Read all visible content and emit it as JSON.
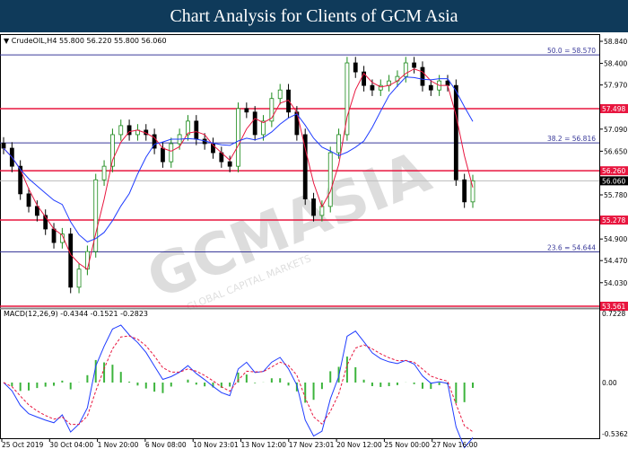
{
  "title": "Chart Analysis for Clients of GCM Asia",
  "chart_data": {
    "type": "candlestick",
    "symbol_label": "CrudeOIL,H4",
    "ohlc_label": "55.800 56.220 55.800 56.060",
    "price_ticks": [
      "58.840",
      "58.400",
      "57.970",
      "57.090",
      "56.650",
      "55.780",
      "54.900",
      "54.470",
      "54.030"
    ],
    "price_range": [
      53.561,
      58.84
    ],
    "closes": [
      56.71,
      56.35,
      55.8,
      55.55,
      55.37,
      55.1,
      54.83,
      55.0,
      53.94,
      54.3,
      54.65,
      56.08,
      56.35,
      56.98,
      57.16,
      56.98,
      57.07,
      56.98,
      56.71,
      56.44,
      56.8,
      56.98,
      57.25,
      56.89,
      56.8,
      56.62,
      56.44,
      56.35,
      57.5,
      57.43,
      56.98,
      57.25,
      57.7,
      57.87,
      57.43,
      56.98,
      55.7,
      55.37,
      55.55,
      56.62,
      56.98,
      58.41,
      58.23,
      57.96,
      57.87,
      57.96,
      58.05,
      58.14,
      58.41,
      58.32,
      57.96,
      57.87,
      58.05,
      57.96,
      56.08,
      55.64,
      56.06
    ],
    "horizontal_levels": [
      {
        "value": 58.57,
        "label": "50.0 = 58.570",
        "color": "#3a3a9a",
        "kind": "fibo"
      },
      {
        "value": 56.816,
        "label": "38.2 = 56.816",
        "color": "#3a3a9a",
        "kind": "fibo"
      },
      {
        "value": 54.644,
        "label": "23.6 = 54.644",
        "color": "#3a3a9a",
        "kind": "fibo"
      },
      {
        "value": 57.498,
        "label": "57.498",
        "color": "#e8163f",
        "kind": "resistance"
      },
      {
        "value": 56.26,
        "label": "56.260",
        "color": "#e8163f",
        "kind": "resistance"
      },
      {
        "value": 55.278,
        "label": "55.278",
        "color": "#e8163f",
        "kind": "support"
      },
      {
        "value": 53.561,
        "label": "53.561",
        "color": "#e8163f",
        "kind": "support"
      }
    ],
    "current_price": "56.060",
    "macd": {
      "label": "MACD(12,26,9) -0.4344 -0.1521 -0.2823",
      "ticks": [
        "0.7228",
        "0.00",
        "-0.5362"
      ],
      "range": [
        -0.5362,
        0.7228
      ]
    },
    "x_tick_labels": [
      "25 Oct 2019",
      "30 Oct 04:00",
      "1 Nov 20:00",
      "6 Nov 08:00",
      "10 Nov 23:01",
      "13 Nov 12:00",
      "17 Nov 23:01",
      "20 Nov 12:00",
      "25 Nov 00:00",
      "27 Nov 16:00"
    ],
    "colors": {
      "bull": "#1a8a1a",
      "bear": "#000000",
      "ma_fast": "#e8163f",
      "ma_slow": "#1f3cff",
      "macd_hist": "#3cb43c",
      "macd_signal": "#e8163f",
      "macd_line": "#1f3cff"
    }
  },
  "watermark": {
    "text": "GCMASIA",
    "sub": "GLOBAL CAPITAL MARKETS"
  }
}
